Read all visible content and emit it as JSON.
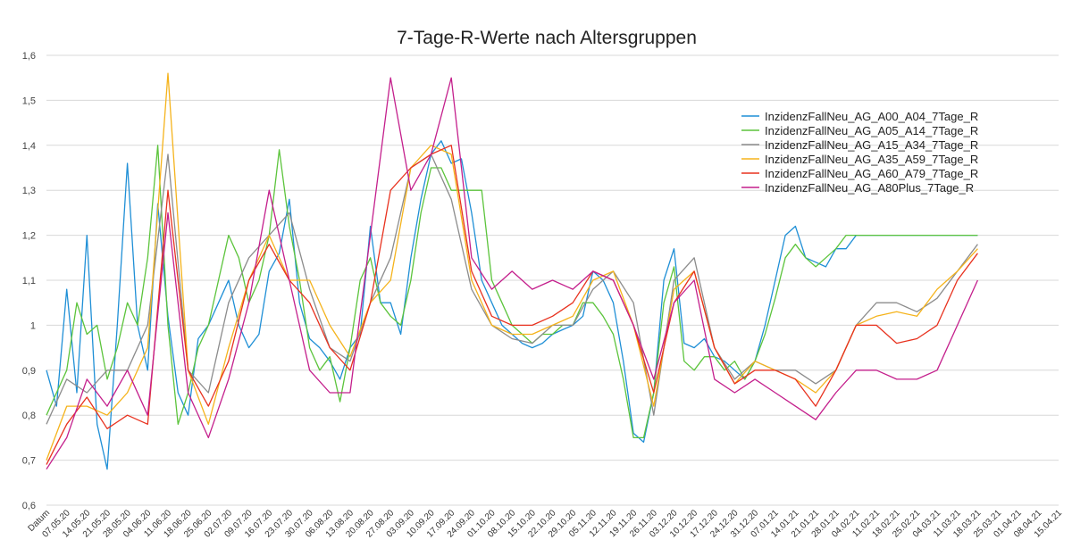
{
  "chart_data": {
    "type": "line",
    "title": "7-Tage-R-Werte nach Altersgruppen",
    "xlabel": "",
    "ylabel": "",
    "ylim": [
      0.6,
      1.6
    ],
    "yticks": [
      "0,6",
      "0,7",
      "0,8",
      "0,9",
      "1",
      "1,1",
      "1,2",
      "1,3",
      "1,4",
      "1,5",
      "1,6"
    ],
    "x_tick_labels": [
      "Datum",
      "07.05.20",
      "14.05.20",
      "21.05.20",
      "28.05.20",
      "04.06.20",
      "11.06.20",
      "18.06.20",
      "25.06.20",
      "02.07.20",
      "09.07.20",
      "16.07.20",
      "23.07.20",
      "30.07.20",
      "06.08.20",
      "13.08.20",
      "20.08.20",
      "27.08.20",
      "03.09.20",
      "10.09.20",
      "17.09.20",
      "24.09.20",
      "01.10.20",
      "08.10.20",
      "15.10.20",
      "22.10.20",
      "29.10.20",
      "05.11.20",
      "12.11.20",
      "19.11.20",
      "26.11.20",
      "03.12.20",
      "10.12.20",
      "17.12.20",
      "24.12.20",
      "31.12.20",
      "07.01.21",
      "14.01.21",
      "21.01.21",
      "28.01.21",
      "04.02.21",
      "11.02.21",
      "18.02.21",
      "25.02.21",
      "04.03.21",
      "11.03.21",
      "18.03.21",
      "25.03.21",
      "01.04.21",
      "08.04.21",
      "15.04.21"
    ],
    "grid": true,
    "legend": "top-right",
    "series": [
      {
        "name": "InzidenzFallNeu_AG_A00_A04_7Tage_R",
        "color": "#1f8fd6",
        "x": [
          0,
          0.5,
          1,
          1.5,
          2,
          2.5,
          3,
          3.5,
          4,
          4.5,
          5,
          5.5,
          6,
          6.5,
          7,
          7.5,
          8,
          8.5,
          9,
          9.5,
          10,
          10.5,
          11,
          11.5,
          12,
          12.5,
          13,
          13.5,
          14,
          14.5,
          15,
          15.5,
          16,
          16.5,
          17,
          17.5,
          18,
          18.5,
          19,
          19.5,
          20,
          20.5,
          21,
          21.5,
          22,
          22.5,
          23,
          23.5,
          24,
          24.5,
          25,
          25.5,
          26,
          26.5,
          27,
          27.5,
          28,
          28.5,
          29,
          29.5,
          30,
          30.5,
          31,
          31.5,
          32,
          32.5,
          33,
          33.5,
          34,
          34.5,
          35,
          35.5,
          36,
          36.5,
          37,
          37.5,
          38,
          38.5,
          39,
          39.5,
          40,
          40.5,
          41,
          41.5,
          42,
          42.5,
          43,
          43.5,
          44,
          44.5,
          45,
          45.5,
          46
        ],
        "y": [
          0.9,
          0.82,
          1.08,
          0.85,
          1.2,
          0.78,
          0.68,
          1.0,
          1.36,
          1.0,
          0.9,
          1.27,
          1.02,
          0.85,
          0.8,
          0.97,
          1.0,
          1.05,
          1.1,
          1.0,
          0.95,
          0.98,
          1.12,
          1.16,
          1.28,
          1.05,
          0.97,
          0.95,
          0.92,
          0.88,
          0.95,
          0.98,
          1.22,
          1.05,
          1.05,
          0.98,
          1.15,
          1.28,
          1.38,
          1.41,
          1.36,
          1.37,
          1.25,
          1.1,
          1.05,
          1.0,
          0.98,
          0.96,
          0.95,
          0.96,
          0.98,
          0.99,
          1.0,
          1.02,
          1.12,
          1.1,
          1.05,
          0.92,
          0.76,
          0.74,
          0.85,
          1.1,
          1.17,
          0.96,
          0.95,
          0.97,
          0.93,
          0.92,
          0.9,
          0.88,
          0.92,
          1.0,
          1.1,
          1.2,
          1.22,
          1.15,
          1.14,
          1.13,
          1.17,
          1.17,
          1.2,
          1.2,
          1.2,
          1.2,
          1.2,
          1.2,
          1.2,
          1.2,
          1.2,
          1.2,
          1.2,
          1.2,
          1.2
        ]
      },
      {
        "name": "InzidenzFallNeu_AG_A05_A14_7Tage_R",
        "color": "#5cc43c",
        "x": [
          0,
          0.5,
          1,
          1.5,
          2,
          2.5,
          3,
          3.5,
          4,
          4.5,
          5,
          5.5,
          6,
          6.5,
          7,
          7.5,
          8,
          8.5,
          9,
          9.5,
          10,
          10.5,
          11,
          11.5,
          12,
          12.5,
          13,
          13.5,
          14,
          14.5,
          15,
          15.5,
          16,
          16.5,
          17,
          17.5,
          18,
          18.5,
          19,
          19.5,
          20,
          20.5,
          21,
          21.5,
          22,
          22.5,
          23,
          23.5,
          24,
          24.5,
          25,
          25.5,
          26,
          26.5,
          27,
          27.5,
          28,
          28.5,
          29,
          29.5,
          30,
          30.5,
          31,
          31.5,
          32,
          32.5,
          33,
          33.5,
          34,
          34.5,
          35,
          35.5,
          36,
          36.5,
          37,
          37.5,
          38,
          38.5,
          39,
          39.5,
          40,
          40.5,
          41,
          41.5,
          42,
          42.5,
          43,
          43.5,
          44,
          44.5,
          45,
          45.5,
          46
        ],
        "y": [
          0.8,
          0.85,
          0.9,
          1.05,
          0.98,
          1.0,
          0.88,
          0.95,
          1.05,
          1.0,
          1.15,
          1.4,
          1.0,
          0.78,
          0.85,
          0.95,
          1.0,
          1.1,
          1.2,
          1.15,
          1.05,
          1.1,
          1.2,
          1.39,
          1.22,
          1.1,
          0.95,
          0.9,
          0.93,
          0.83,
          0.95,
          1.1,
          1.15,
          1.05,
          1.02,
          1.0,
          1.1,
          1.25,
          1.35,
          1.35,
          1.3,
          1.3,
          1.3,
          1.3,
          1.1,
          1.05,
          1.0,
          0.98,
          0.96,
          0.98,
          0.98,
          1.0,
          1.0,
          1.05,
          1.05,
          1.02,
          0.98,
          0.88,
          0.75,
          0.75,
          0.85,
          1.05,
          1.13,
          0.92,
          0.9,
          0.93,
          0.93,
          0.9,
          0.92,
          0.88,
          0.92,
          0.98,
          1.06,
          1.15,
          1.18,
          1.15,
          1.13,
          1.15,
          1.17,
          1.2,
          1.2,
          1.2,
          1.2,
          1.2,
          1.2,
          1.2,
          1.2,
          1.2,
          1.2,
          1.2,
          1.2,
          1.2,
          1.2
        ]
      },
      {
        "name": "InzidenzFallNeu_AG_A15_A34_7Tage_R",
        "color": "#8c8c8c",
        "x": [
          0,
          1,
          2,
          3,
          4,
          5,
          6,
          7,
          8,
          9,
          10,
          11,
          12,
          13,
          14,
          15,
          16,
          17,
          18,
          19,
          20,
          21,
          22,
          23,
          24,
          25,
          26,
          27,
          28,
          29,
          30,
          31,
          32,
          33,
          34,
          35,
          36,
          37,
          38,
          39,
          40,
          41,
          42,
          43,
          44,
          45,
          46
        ],
        "y": [
          0.78,
          0.88,
          0.85,
          0.9,
          0.9,
          1.0,
          1.38,
          0.9,
          0.85,
          1.05,
          1.15,
          1.2,
          1.25,
          1.08,
          0.95,
          0.92,
          1.05,
          1.15,
          1.35,
          1.38,
          1.28,
          1.08,
          1.0,
          0.97,
          0.96,
          1.0,
          1.0,
          1.08,
          1.12,
          1.05,
          0.8,
          1.1,
          1.15,
          0.95,
          0.88,
          0.92,
          0.9,
          0.9,
          0.87,
          0.9,
          1.0,
          1.05,
          1.05,
          1.03,
          1.06,
          1.12,
          1.18
        ]
      },
      {
        "name": "InzidenzFallNeu_AG_A35_A59_7Tage_R",
        "color": "#f5b31b",
        "x": [
          0,
          1,
          2,
          3,
          4,
          5,
          6,
          7,
          8,
          9,
          10,
          11,
          12,
          13,
          14,
          15,
          16,
          17,
          18,
          19,
          20,
          21,
          22,
          23,
          24,
          25,
          26,
          27,
          28,
          29,
          30,
          31,
          32,
          33,
          34,
          35,
          36,
          37,
          38,
          39,
          40,
          41,
          42,
          43,
          44,
          45,
          46
        ],
        "y": [
          0.7,
          0.82,
          0.82,
          0.8,
          0.85,
          0.95,
          1.56,
          0.9,
          0.78,
          0.95,
          1.1,
          1.2,
          1.1,
          1.1,
          1.0,
          0.93,
          1.05,
          1.1,
          1.35,
          1.4,
          1.38,
          1.1,
          1.0,
          0.98,
          0.98,
          1.0,
          1.02,
          1.1,
          1.12,
          1.0,
          0.82,
          1.08,
          1.12,
          0.95,
          0.87,
          0.92,
          0.9,
          0.88,
          0.85,
          0.9,
          1.0,
          1.02,
          1.03,
          1.02,
          1.08,
          1.12,
          1.17
        ]
      },
      {
        "name": "InzidenzFallNeu_AG_A60_A79_7Tage_R",
        "color": "#e8321f",
        "x": [
          0,
          1,
          2,
          3,
          4,
          5,
          6,
          7,
          8,
          9,
          10,
          11,
          12,
          13,
          14,
          15,
          16,
          17,
          18,
          19,
          20,
          21,
          22,
          23,
          24,
          25,
          26,
          27,
          28,
          29,
          30,
          31,
          32,
          33,
          34,
          35,
          36,
          37,
          38,
          39,
          40,
          41,
          42,
          43,
          44,
          45,
          46
        ],
        "y": [
          0.69,
          0.78,
          0.84,
          0.77,
          0.8,
          0.78,
          1.3,
          0.9,
          0.82,
          0.92,
          1.1,
          1.18,
          1.1,
          1.05,
          0.95,
          0.9,
          1.05,
          1.3,
          1.35,
          1.38,
          1.4,
          1.12,
          1.02,
          1.0,
          1.0,
          1.02,
          1.05,
          1.12,
          1.1,
          1.0,
          0.85,
          1.05,
          1.12,
          0.95,
          0.87,
          0.9,
          0.9,
          0.88,
          0.82,
          0.9,
          1.0,
          1.0,
          0.96,
          0.97,
          1.0,
          1.1,
          1.16
        ]
      },
      {
        "name": "InzidenzFallNeu_AG_A80Plus_7Tage_R",
        "color": "#c41f8c",
        "x": [
          0,
          1,
          2,
          3,
          4,
          5,
          6,
          7,
          8,
          9,
          10,
          11,
          12,
          13,
          14,
          15,
          16,
          17,
          18,
          19,
          20,
          21,
          22,
          23,
          24,
          25,
          26,
          27,
          28,
          29,
          30,
          31,
          32,
          33,
          34,
          35,
          36,
          37,
          38,
          39,
          40,
          41,
          42,
          43,
          44,
          45,
          46
        ],
        "y": [
          0.68,
          0.75,
          0.88,
          0.82,
          0.9,
          0.8,
          1.25,
          0.85,
          0.75,
          0.88,
          1.05,
          1.3,
          1.1,
          0.9,
          0.85,
          0.85,
          1.2,
          1.55,
          1.3,
          1.38,
          1.55,
          1.15,
          1.08,
          1.12,
          1.08,
          1.1,
          1.08,
          1.12,
          1.1,
          1.0,
          0.88,
          1.05,
          1.1,
          0.88,
          0.85,
          0.88,
          0.85,
          0.82,
          0.79,
          0.85,
          0.9,
          0.9,
          0.88,
          0.88,
          0.9,
          1.0,
          1.1
        ]
      }
    ]
  }
}
